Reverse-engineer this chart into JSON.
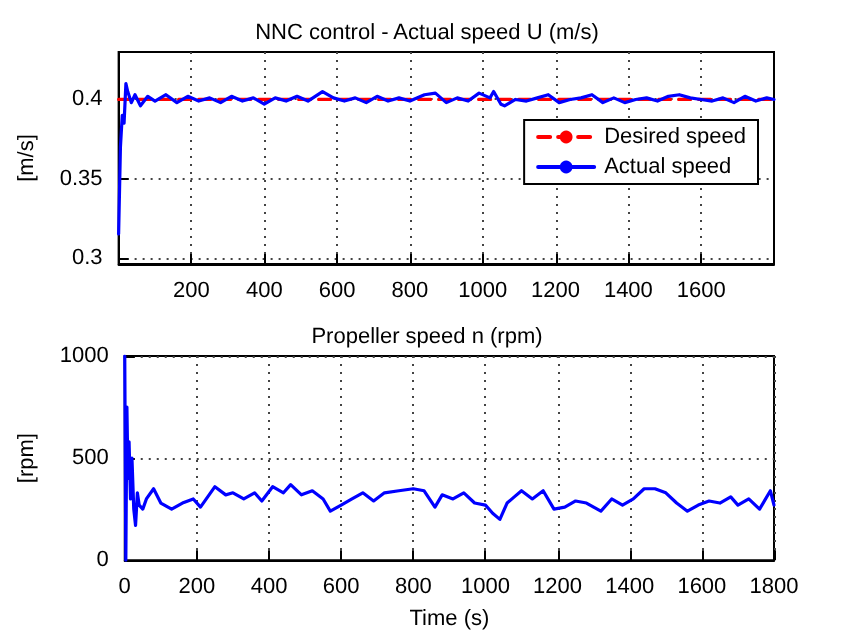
{
  "chart_data": [
    {
      "type": "line",
      "title": "NNC control - Actual speed U (m/s)",
      "ylabel": "[m/s]",
      "xlim": [
        0,
        1800
      ],
      "ylim": [
        0.296,
        0.43
      ],
      "xticks": [
        200,
        400,
        600,
        800,
        1000,
        1200,
        1400,
        1600
      ],
      "yticks": [
        0.3,
        0.35,
        0.4
      ],
      "grid": true,
      "legend": "right",
      "marker": "none",
      "series": [
        {
          "name": "Desired speed",
          "color": "#ff0000",
          "line_style": "dashed",
          "x": [
            0,
            1800
          ],
          "values": [
            0.4,
            0.4
          ]
        },
        {
          "name": "Actual speed",
          "color": "#0000ff",
          "line_style": "solid",
          "x": [
            0,
            5,
            10,
            15,
            20,
            25,
            35,
            45,
            60,
            80,
            100,
            130,
            160,
            190,
            220,
            250,
            280,
            310,
            340,
            370,
            400,
            430,
            460,
            490,
            520,
            560,
            590,
            620,
            650,
            680,
            710,
            740,
            770,
            800,
            840,
            870,
            900,
            930,
            960,
            990,
            1020,
            1030,
            1050,
            1060,
            1090,
            1120,
            1150,
            1180,
            1210,
            1240,
            1270,
            1300,
            1330,
            1360,
            1390,
            1420,
            1450,
            1480,
            1510,
            1540,
            1570,
            1600,
            1630,
            1660,
            1690,
            1720,
            1750,
            1780,
            1800
          ],
          "values": [
            0.315,
            0.37,
            0.39,
            0.385,
            0.41,
            0.405,
            0.398,
            0.403,
            0.396,
            0.402,
            0.399,
            0.403,
            0.398,
            0.402,
            0.399,
            0.401,
            0.398,
            0.402,
            0.399,
            0.401,
            0.397,
            0.401,
            0.399,
            0.402,
            0.399,
            0.405,
            0.401,
            0.399,
            0.401,
            0.398,
            0.402,
            0.399,
            0.401,
            0.399,
            0.403,
            0.404,
            0.398,
            0.401,
            0.399,
            0.404,
            0.401,
            0.405,
            0.397,
            0.396,
            0.4,
            0.399,
            0.401,
            0.403,
            0.398,
            0.4,
            0.401,
            0.403,
            0.398,
            0.401,
            0.398,
            0.4,
            0.401,
            0.399,
            0.402,
            0.403,
            0.401,
            0.4,
            0.399,
            0.401,
            0.398,
            0.402,
            0.399,
            0.401,
            0.4
          ]
        }
      ]
    },
    {
      "type": "line",
      "title": "Propeller speed n (rpm)",
      "xlabel": "Time (s)",
      "ylabel": "[rpm]",
      "xlim": [
        0,
        1800
      ],
      "ylim": [
        0,
        1000
      ],
      "xticks": [
        0,
        200,
        400,
        600,
        800,
        1000,
        1200,
        1400,
        1600,
        1800
      ],
      "yticks": [
        0,
        500,
        1000
      ],
      "grid": true,
      "marker": "none",
      "series": [
        {
          "color": "#0000ff",
          "line_style": "solid",
          "x": [
            0,
            3,
            6,
            9,
            12,
            16,
            20,
            25,
            30,
            35,
            40,
            50,
            60,
            80,
            100,
            130,
            160,
            190,
            210,
            250,
            280,
            300,
            330,
            360,
            380,
            410,
            440,
            460,
            490,
            520,
            550,
            570,
            600,
            630,
            660,
            690,
            720,
            760,
            800,
            830,
            860,
            880,
            910,
            940,
            970,
            1000,
            1020,
            1040,
            1060,
            1080,
            1100,
            1130,
            1160,
            1190,
            1220,
            1250,
            1280,
            1320,
            1350,
            1380,
            1410,
            1440,
            1470,
            1500,
            1530,
            1560,
            1590,
            1620,
            1650,
            1680,
            1700,
            1730,
            1760,
            1790,
            1800
          ],
          "values": [
            1000,
            0,
            750,
            400,
            580,
            300,
            500,
            250,
            170,
            330,
            270,
            250,
            300,
            350,
            280,
            250,
            280,
            300,
            260,
            360,
            320,
            330,
            300,
            330,
            290,
            360,
            330,
            370,
            320,
            340,
            300,
            240,
            270,
            300,
            330,
            290,
            330,
            340,
            350,
            340,
            260,
            320,
            300,
            330,
            280,
            270,
            230,
            200,
            280,
            310,
            340,
            300,
            340,
            250,
            260,
            290,
            280,
            240,
            300,
            270,
            300,
            350,
            350,
            330,
            280,
            240,
            270,
            290,
            280,
            310,
            270,
            300,
            250,
            340,
            270
          ]
        }
      ]
    }
  ]
}
